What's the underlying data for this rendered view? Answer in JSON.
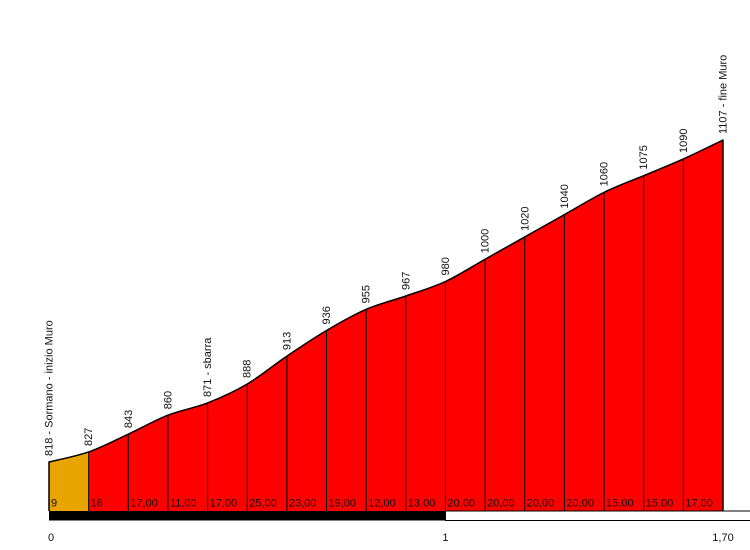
{
  "chart_data": {
    "type": "area",
    "description": "Cycling climb elevation profile with per-100m gradient segments",
    "x_km": [
      0,
      0.1,
      0.2,
      0.3,
      0.4,
      0.5,
      0.6,
      0.7,
      0.8,
      0.9,
      1.0,
      1.1,
      1.2,
      1.3,
      1.4,
      1.5,
      1.6,
      1.7
    ],
    "elevation_m": [
      818,
      827,
      843,
      860,
      871,
      888,
      913,
      936,
      955,
      967,
      980,
      1000,
      1020,
      1040,
      1060,
      1075,
      1090,
      1107
    ],
    "point_labels": [
      "818 - Sormano - inizio Muro",
      "827",
      "843",
      "860",
      "871 - sbarra",
      "888",
      "913",
      "936",
      "955",
      "967",
      "980",
      "1000",
      "1020",
      "1040",
      "1060",
      "1075",
      "1090",
      "1107 - fine Muro"
    ],
    "segment_gradient_labels": [
      "9",
      "16",
      "17,00",
      "11,00",
      "17,00",
      "25,00",
      "23,00",
      "19,00",
      "12,00",
      "13,00",
      "20,00",
      "20,00",
      "20,00",
      "20,00",
      "15,00",
      "15,00",
      "17,00"
    ],
    "segment_colors": [
      "#E9A400",
      "#FF0000",
      "#FF0000",
      "#FF0000",
      "#FF0000",
      "#FF0000",
      "#FF0000",
      "#FF0000",
      "#FF0000",
      "#FF0000",
      "#FF0000",
      "#FF0000",
      "#FF0000",
      "#FF0000",
      "#FF0000",
      "#FF0000",
      "#FF0000"
    ],
    "x_axis_ticks": [
      {
        "km": 0,
        "label": "0"
      },
      {
        "km": 1,
        "label": "1"
      },
      {
        "km": 1.7,
        "label": "1,70"
      }
    ],
    "x_range_km": [
      0,
      1.7
    ],
    "elevation_range_m": [
      818,
      1107
    ],
    "scale_bar": {
      "filled_km": [
        0,
        1
      ],
      "open_km": [
        1,
        1.7
      ]
    },
    "colors": {
      "default_fill": "#FF0000",
      "first_segment_fill": "#E9A400",
      "outline": "#000000",
      "label_text": "#111111",
      "scale_bar_fill": "#000000",
      "scale_bar_open_fill": "#FFFFFF",
      "background": "#FFFFFF"
    },
    "grid": "off",
    "legend": "none"
  }
}
